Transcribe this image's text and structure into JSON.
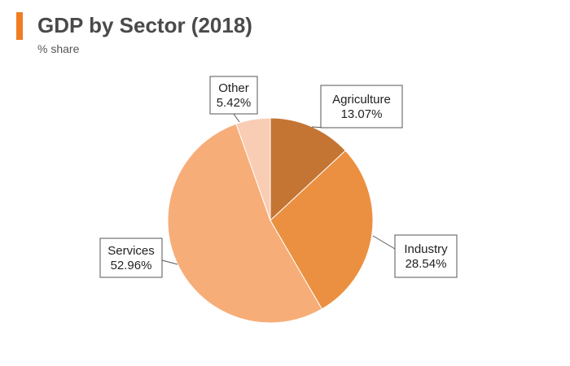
{
  "chart_data": {
    "type": "pie",
    "title": "GDP by Sector (2018)",
    "subtitle": "% share",
    "slices": [
      {
        "label": "Agriculture",
        "value": 13.07,
        "display": "13.07%",
        "color": "#c47534"
      },
      {
        "label": "Industry",
        "value": 28.54,
        "display": "28.54%",
        "color": "#eb9040"
      },
      {
        "label": "Services",
        "value": 52.96,
        "display": "52.96%",
        "color": "#f7ad78"
      },
      {
        "label": "Other",
        "value": 5.42,
        "display": "5.42%",
        "color": "#f9ccb4"
      }
    ],
    "colors": {
      "accent": "#ef7d22",
      "title": "#4a4a4a",
      "callout_border": "#555555"
    }
  }
}
